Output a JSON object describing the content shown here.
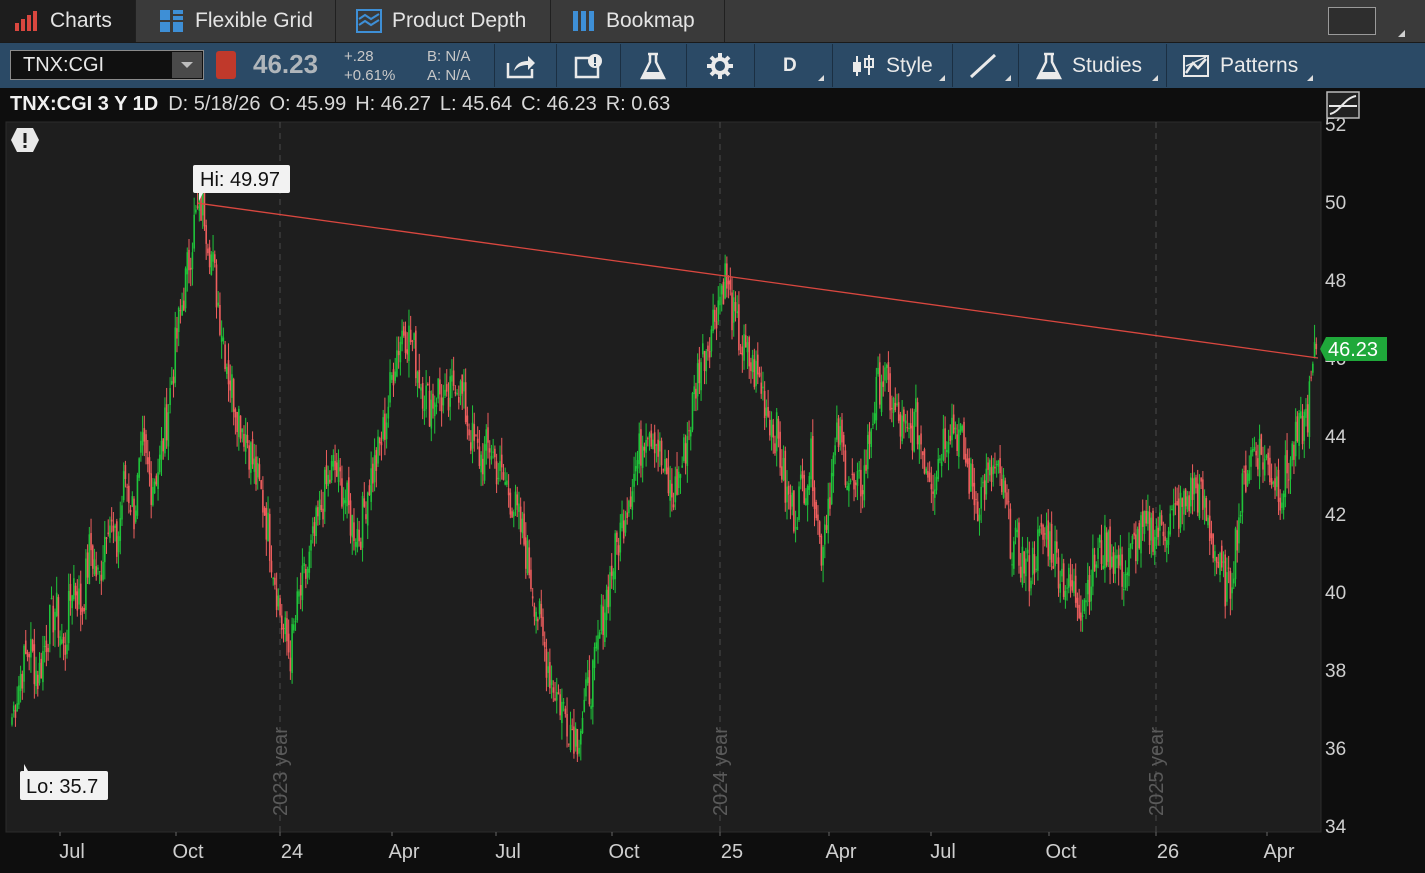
{
  "tabs": [
    {
      "label": "Charts",
      "icon": "bar-chart-icon",
      "active": true
    },
    {
      "label": "Flexible Grid",
      "icon": "grid-icon",
      "active": false
    },
    {
      "label": "Product Depth",
      "icon": "depth-icon",
      "active": false
    },
    {
      "label": "Bookmap",
      "icon": "bookmap-icon",
      "active": false
    }
  ],
  "toolbar": {
    "symbol": "TNX:CGI",
    "last_price": "46.23",
    "change": "+.28",
    "change_pct": "+0.61%",
    "bid": "B: N/A",
    "ask": "A: N/A",
    "aggregation": "D",
    "style_label": "Style",
    "studies_label": "Studies",
    "patterns_label": "Patterns"
  },
  "infobar": {
    "title": "TNX:CGI 3 Y 1D",
    "date": "D: 5/18/26",
    "open": "O: 45.99",
    "high": "H: 46.27",
    "low": "L: 45.64",
    "close": "C: 46.23",
    "range": "R: 0.63"
  },
  "colors": {
    "up": "#1fc43a",
    "down": "#ef5e5e",
    "trendline": "#d9473f",
    "toolbar_bg": "#2b4a66",
    "price_bubble": "#1fa83a"
  },
  "chart_data": {
    "type": "candlestick",
    "y_ticks": [
      34,
      36,
      38,
      40,
      42,
      44,
      46,
      48,
      50,
      52
    ],
    "ylim": [
      34,
      52
    ],
    "x_ticks": [
      "Jul",
      "Oct",
      "24",
      "Apr",
      "Jul",
      "Oct",
      "25",
      "Apr",
      "Jul",
      "Oct",
      "26",
      "Apr"
    ],
    "year_labels": [
      "2023 year",
      "2024 year",
      "2025 year"
    ],
    "last_price_label": "46.23",
    "high_label": "Hi: 49.97",
    "low_label": "Lo: 35.7",
    "trendline": {
      "start": 49.97,
      "end": 46.0
    },
    "series": [
      {
        "values": [
          36.8,
          37.9,
          38.6,
          37.8,
          38.9,
          39.6,
          38.4,
          40.4,
          39.5,
          41.2,
          40.2,
          42.1,
          41.0,
          43.0,
          42.0,
          43.6,
          42.8,
          43.3,
          44.8,
          46.6,
          48.0,
          49.5,
          49.97,
          48.5,
          47.0,
          45.5,
          44.6,
          44.0,
          43.0,
          42.2,
          40.8,
          39.2,
          38.4,
          39.8,
          40.6,
          41.6,
          42.6,
          43.2,
          42.7,
          41.8,
          41.5,
          42.8,
          43.4,
          44.4,
          46.0,
          46.8,
          46.4,
          45.4,
          44.8,
          45.2,
          44.6,
          45.6,
          44.8,
          43.8,
          43.4,
          43.8,
          43.0,
          42.7,
          42.0,
          41.2,
          40.0,
          38.8,
          37.8,
          37.2,
          36.7,
          36.3,
          37.2,
          38.0,
          39.5,
          40.6,
          41.6,
          42.6,
          43.4,
          44.4,
          44.0,
          43.0,
          42.4,
          43.2,
          44.4,
          45.8,
          46.4,
          47.3,
          48.1,
          47.0,
          46.2,
          45.8,
          45.4,
          44.6,
          44.0,
          42.5,
          42.0,
          42.8,
          43.4,
          41.0,
          42.6,
          44.0,
          43.2,
          42.4,
          43.0,
          44.6,
          45.6,
          45.0,
          44.3,
          43.9,
          44.4,
          43.4,
          42.9,
          43.9,
          44.4,
          44.0,
          43.0,
          42.3,
          42.8,
          43.1,
          42.6,
          41.2,
          40.9,
          40.5,
          41.2,
          41.5,
          40.9,
          40.3,
          40.0,
          39.7,
          40.4,
          41.0,
          41.2,
          40.8,
          40.4,
          41.2,
          41.5,
          41.6,
          41.6,
          41.8,
          42.0,
          42.3,
          42.7,
          42.2,
          41.4,
          40.4,
          40.0,
          41.8,
          43.2,
          43.8,
          43.4,
          43.0,
          42.6,
          43.4,
          44.0,
          44.6,
          46.23
        ]
      }
    ]
  }
}
